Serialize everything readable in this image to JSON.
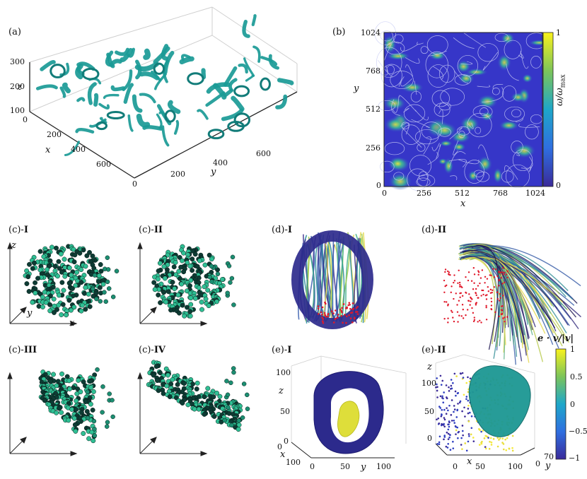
{
  "panels": {
    "a": {
      "label": "(a)",
      "z_ticks": [
        "300",
        "200",
        "100"
      ],
      "x_ticks": [
        "0",
        "200",
        "400",
        "600"
      ],
      "y_ticks": [
        "0",
        "200",
        "400",
        "600"
      ],
      "xlabel": "x",
      "ylabel": "y",
      "zlabel": "z",
      "color": "#1a9a96"
    },
    "b": {
      "label": "(b)",
      "y_ticks": [
        "1024",
        "768",
        "512",
        "256",
        "0"
      ],
      "x_ticks": [
        "0",
        "256",
        "512",
        "768",
        "1024"
      ],
      "xlabel": "x",
      "ylabel": "y",
      "colorbar_ticks": [
        "1",
        "0"
      ],
      "colorbar_label": "ω/ω",
      "colorbar_label_sub": "max"
    },
    "c1": {
      "label_prefix": "(c)-",
      "label_bold": "I",
      "zlabel": "z",
      "ylabel": "y",
      "xlabel": "x"
    },
    "c2": {
      "label_prefix": "(c)-",
      "label_bold": "II"
    },
    "c3": {
      "label_prefix": "(c)-",
      "label_bold": "III"
    },
    "c4": {
      "label_prefix": "(c)-",
      "label_bold": "IV"
    },
    "d1": {
      "label_prefix": "(d)-",
      "label_bold": "I"
    },
    "d2": {
      "label_prefix": "(d)-",
      "label_bold": "II"
    },
    "e1": {
      "label_prefix": "(e)-",
      "label_bold": "I",
      "z_ticks": [
        "100",
        "50",
        "0"
      ],
      "x_ticks": [
        "0",
        "100"
      ],
      "y_ticks": [
        "0",
        "50",
        "100"
      ],
      "xlabel": "x",
      "ylabel": "y",
      "zlabel": "z"
    },
    "e2": {
      "label_prefix": "(e)-",
      "label_bold": "II",
      "z_ticks": [
        "100",
        "50",
        "0"
      ],
      "x_ticks": [
        "0",
        "50",
        "100"
      ],
      "y_ticks": [
        "70",
        "0"
      ],
      "xlabel": "x",
      "ylabel": "y",
      "zlabel": "z",
      "colorbar_title": "e · v/|v|",
      "colorbar_ticks": [
        "1",
        "0.5",
        "0",
        "−0.5",
        "−1"
      ]
    }
  },
  "colors": {
    "teal": "#1a9a96",
    "navy": "#2c2a8c",
    "yellow": "#e8e84a",
    "viridis_low": "#3b2a98",
    "viridis_high": "#f5e93a",
    "red": "#e0182a"
  }
}
